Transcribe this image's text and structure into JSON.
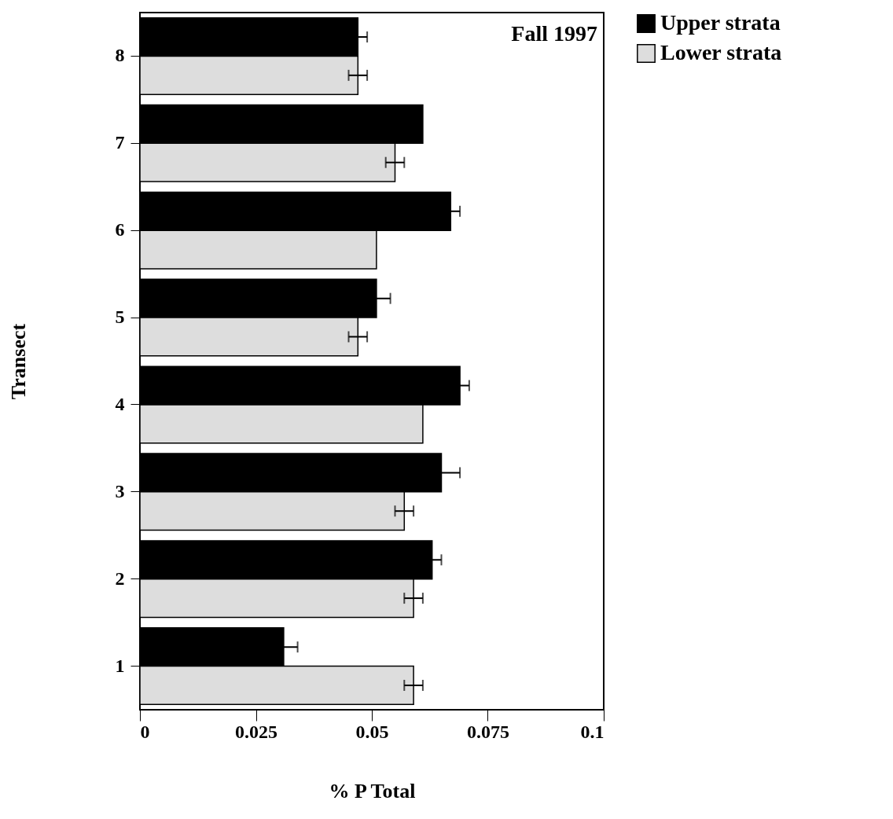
{
  "chart_data": {
    "type": "bar",
    "orientation": "horizontal",
    "xlabel": "% P Total",
    "ylabel": "Transect",
    "annotations": [
      "Fall 1997"
    ],
    "categories": [
      "8",
      "7",
      "6",
      "5",
      "4",
      "3",
      "2",
      "1"
    ],
    "series": [
      {
        "name": "Upper strata",
        "color": "#000000",
        "values": [
          0.047,
          0.061,
          0.067,
          0.051,
          0.069,
          0.065,
          0.063,
          0.031
        ],
        "errors": [
          0.002,
          null,
          0.002,
          0.003,
          0.002,
          0.004,
          0.002,
          0.003
        ]
      },
      {
        "name": "Lower strata",
        "color": "#dddddd",
        "values": [
          0.047,
          0.055,
          0.051,
          0.047,
          0.061,
          0.057,
          0.059,
          0.059
        ],
        "errors": [
          0.002,
          0.002,
          null,
          0.002,
          null,
          0.002,
          0.002,
          0.002
        ]
      }
    ],
    "xlim": [
      0,
      0.1
    ],
    "xticks": [
      0,
      0.025,
      0.05,
      0.075,
      0.1
    ],
    "legend": "top right"
  }
}
